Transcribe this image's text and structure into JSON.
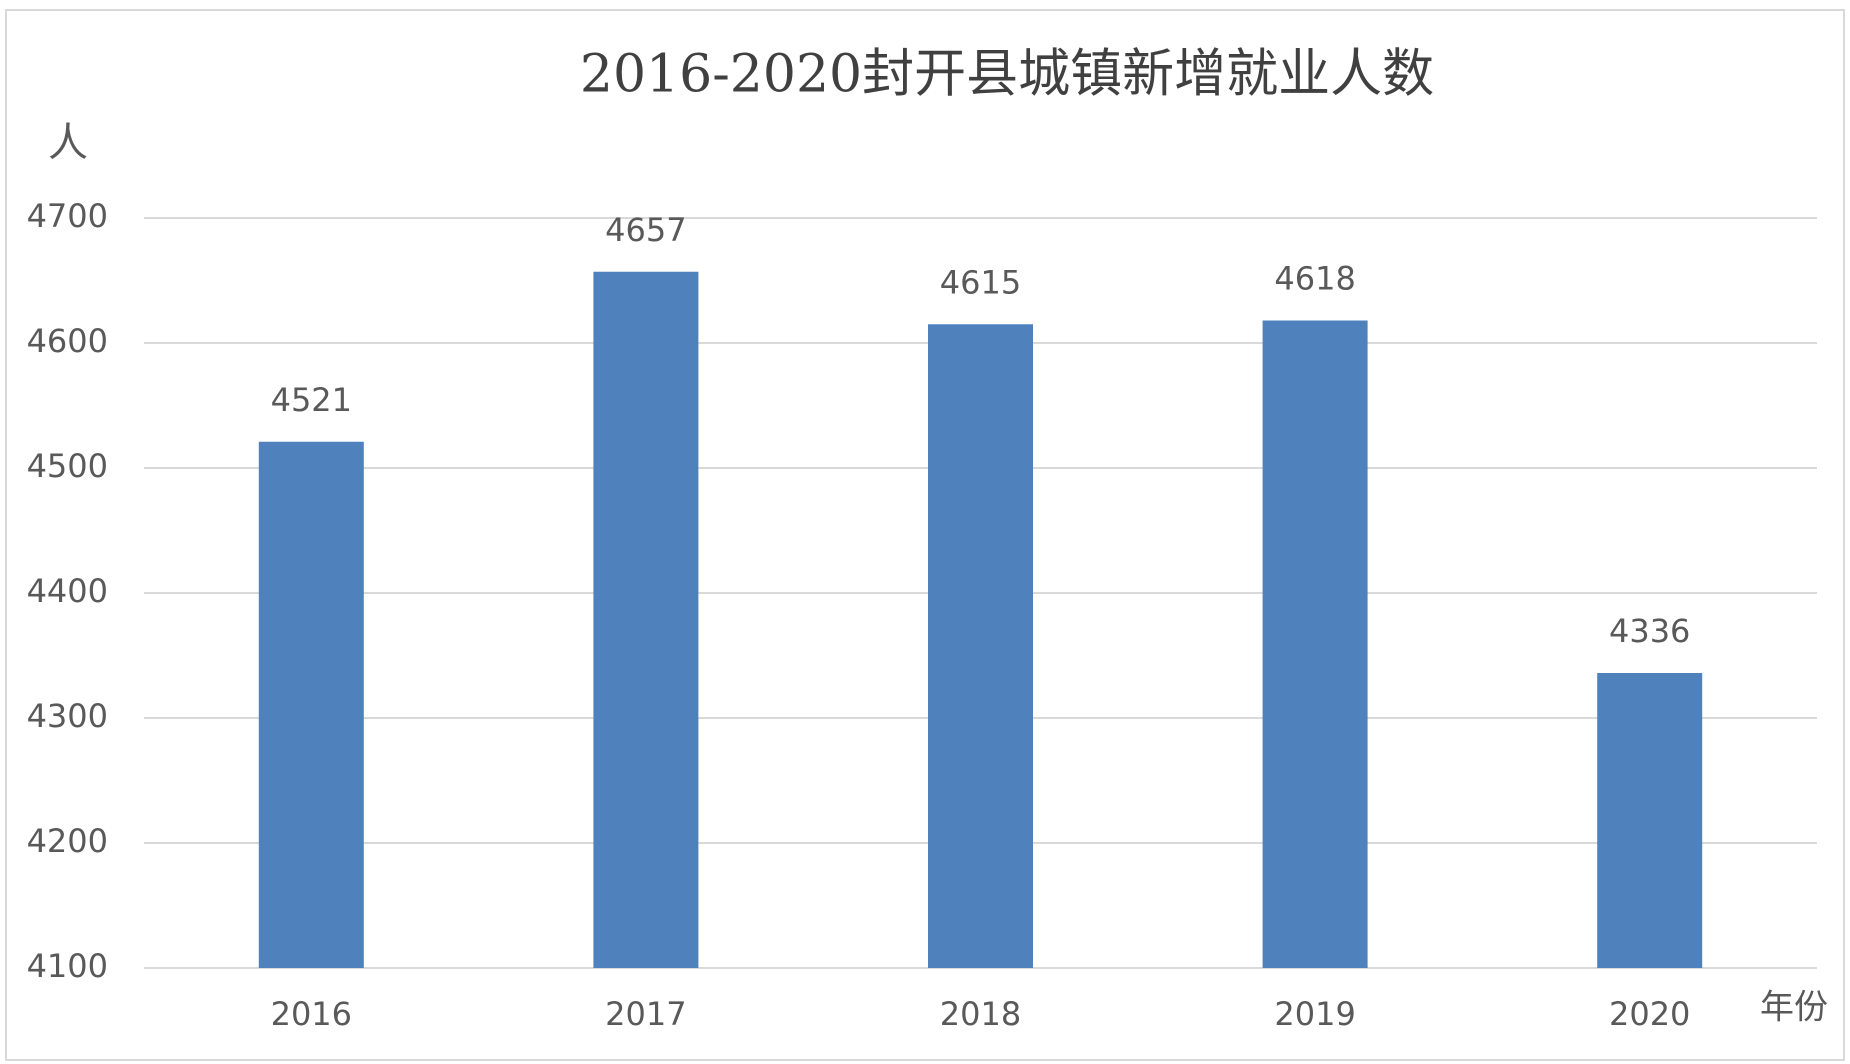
{
  "chart_data": {
    "type": "bar",
    "title": "2016-2020封开县城镇新增就业人数",
    "y_label": "人",
    "x_label": "年份",
    "categories": [
      "2016",
      "2017",
      "2018",
      "2019",
      "2020"
    ],
    "values": [
      4521,
      4657,
      4615,
      4618,
      4336
    ],
    "color": "#4f81bd",
    "ylim": [
      4100,
      4700
    ],
    "yticks": [
      4100,
      4200,
      4300,
      4400,
      4500,
      4600,
      4700
    ],
    "grid": true,
    "data_labels": true
  }
}
